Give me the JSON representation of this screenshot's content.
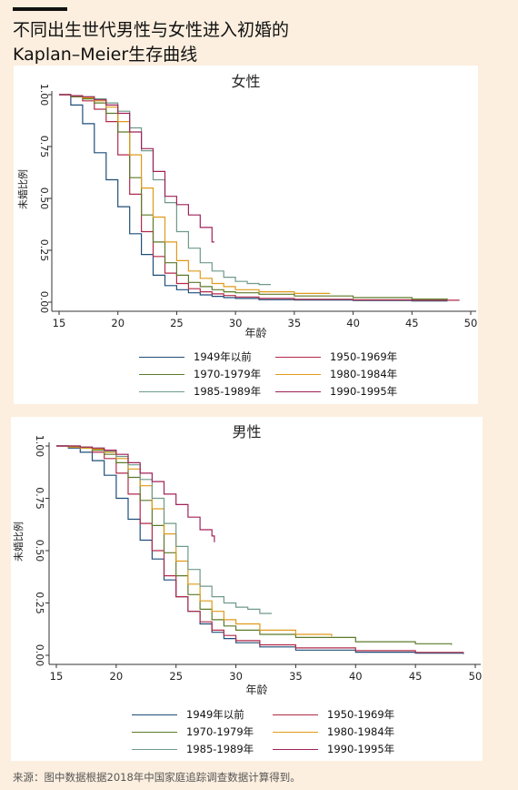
{
  "header": {
    "title_line1": "不同出生世代男性与女性进入初婚的",
    "title_line2": "Kaplan–Meier生存曲线"
  },
  "source": "来源：图中数据根据2018年中国家庭追踪调查数据计算得到。",
  "colors": {
    "background": "#fcefdf",
    "panel": "#ffffff",
    "axis": "#333333",
    "1949年以前": "#1f4e7a",
    "1950-1969年": "#b22a4a",
    "1970-1979年": "#5c7a2a",
    "1980-1984年": "#e09a1a",
    "1985-1989年": "#6f9a8a",
    "1990-1995年": "#a0225a"
  },
  "chart_data": [
    {
      "id": "female",
      "type": "line",
      "step": true,
      "title": "女性",
      "xlabel": "年龄",
      "ylabel": "未婚比例",
      "xlim": [
        14.5,
        50
      ],
      "ylim": [
        0,
        1
      ],
      "xticks": [
        15,
        20,
        25,
        30,
        35,
        40,
        45,
        50
      ],
      "yticks": [
        "0.00",
        "0.25",
        "0.50",
        "0.75",
        "1.00"
      ],
      "grid": false,
      "legend": "bottom",
      "series": [
        {
          "name": "1949年以前",
          "points": [
            [
              15,
              1
            ],
            [
              16,
              0.95
            ],
            [
              17,
              0.86
            ],
            [
              18,
              0.72
            ],
            [
              19,
              0.59
            ],
            [
              20,
              0.46
            ],
            [
              21,
              0.33
            ],
            [
              22,
              0.23
            ],
            [
              23,
              0.13
            ],
            [
              24,
              0.08
            ],
            [
              25,
              0.06
            ],
            [
              26,
              0.045
            ],
            [
              27,
              0.035
            ],
            [
              28,
              0.028
            ],
            [
              29,
              0.022
            ],
            [
              30,
              0.018
            ],
            [
              32,
              0.012
            ],
            [
              35,
              0.01
            ],
            [
              40,
              0.008
            ],
            [
              45,
              0.006
            ],
            [
              48,
              0.005
            ]
          ]
        },
        {
          "name": "1950-1969年",
          "points": [
            [
              15,
              1
            ],
            [
              16,
              0.99
            ],
            [
              17,
              0.97
            ],
            [
              18,
              0.93
            ],
            [
              19,
              0.87
            ],
            [
              20,
              0.71
            ],
            [
              21,
              0.52
            ],
            [
              22,
              0.34
            ],
            [
              23,
              0.22
            ],
            [
              24,
              0.14
            ],
            [
              25,
              0.09
            ],
            [
              26,
              0.065
            ],
            [
              27,
              0.05
            ],
            [
              28,
              0.04
            ],
            [
              29,
              0.032
            ],
            [
              30,
              0.025
            ],
            [
              32,
              0.018
            ],
            [
              35,
              0.014
            ],
            [
              40,
              0.011
            ],
            [
              45,
              0.009
            ],
            [
              49,
              0.007
            ]
          ]
        },
        {
          "name": "1970-1979年",
          "points": [
            [
              15,
              1
            ],
            [
              16,
              0.99
            ],
            [
              17,
              0.98
            ],
            [
              18,
              0.96
            ],
            [
              19,
              0.91
            ],
            [
              20,
              0.82
            ],
            [
              21,
              0.6
            ],
            [
              22,
              0.42
            ],
            [
              23,
              0.29
            ],
            [
              24,
              0.19
            ],
            [
              25,
              0.13
            ],
            [
              26,
              0.095
            ],
            [
              27,
              0.075
            ],
            [
              28,
              0.06
            ],
            [
              29,
              0.05
            ],
            [
              30,
              0.045
            ],
            [
              32,
              0.038
            ],
            [
              35,
              0.03
            ],
            [
              40,
              0.022
            ],
            [
              45,
              0.015
            ],
            [
              48,
              0.012
            ]
          ]
        },
        {
          "name": "1980-1984年",
          "points": [
            [
              15,
              1
            ],
            [
              16,
              0.995
            ],
            [
              17,
              0.985
            ],
            [
              18,
              0.97
            ],
            [
              19,
              0.94
            ],
            [
              20,
              0.87
            ],
            [
              21,
              0.71
            ],
            [
              22,
              0.55
            ],
            [
              23,
              0.41
            ],
            [
              24,
              0.29
            ],
            [
              25,
              0.2
            ],
            [
              26,
              0.15
            ],
            [
              27,
              0.115
            ],
            [
              28,
              0.09
            ],
            [
              29,
              0.075
            ],
            [
              30,
              0.06
            ],
            [
              32,
              0.05
            ],
            [
              35,
              0.042
            ],
            [
              38,
              0.04
            ]
          ]
        },
        {
          "name": "1985-1989年",
          "points": [
            [
              15,
              1
            ],
            [
              16,
              0.995
            ],
            [
              17,
              0.99
            ],
            [
              18,
              0.98
            ],
            [
              19,
              0.96
            ],
            [
              20,
              0.92
            ],
            [
              21,
              0.84
            ],
            [
              22,
              0.73
            ],
            [
              23,
              0.59
            ],
            [
              24,
              0.48
            ],
            [
              25,
              0.34
            ],
            [
              26,
              0.26
            ],
            [
              27,
              0.19
            ],
            [
              28,
              0.15
            ],
            [
              29,
              0.12
            ],
            [
              30,
              0.1
            ],
            [
              31,
              0.09
            ],
            [
              32,
              0.085
            ],
            [
              33,
              0.085
            ]
          ]
        },
        {
          "name": "1990-1995年",
          "points": [
            [
              15,
              1
            ],
            [
              16,
              0.995
            ],
            [
              17,
              0.99
            ],
            [
              18,
              0.975
            ],
            [
              19,
              0.95
            ],
            [
              20,
              0.91
            ],
            [
              21,
              0.82
            ],
            [
              22,
              0.74
            ],
            [
              23,
              0.63
            ],
            [
              24,
              0.51
            ],
            [
              25,
              0.47
            ],
            [
              26,
              0.42
            ],
            [
              27,
              0.36
            ],
            [
              28,
              0.29
            ],
            [
              28.2,
              0.29
            ]
          ]
        }
      ]
    },
    {
      "id": "male",
      "type": "line",
      "step": true,
      "title": "男性",
      "xlabel": "年龄",
      "ylabel": "未婚比例",
      "xlim": [
        14.5,
        50
      ],
      "ylim": [
        0,
        1
      ],
      "xticks": [
        15,
        20,
        25,
        30,
        35,
        40,
        45,
        50
      ],
      "yticks": [
        "0.00",
        "0.25",
        "0.50",
        "0.75",
        "1.00"
      ],
      "grid": false,
      "legend": "bottom",
      "series": [
        {
          "name": "1949年以前",
          "points": [
            [
              15,
              1
            ],
            [
              16,
              0.99
            ],
            [
              17,
              0.97
            ],
            [
              18,
              0.93
            ],
            [
              19,
              0.86
            ],
            [
              20,
              0.75
            ],
            [
              21,
              0.65
            ],
            [
              22,
              0.55
            ],
            [
              23,
              0.46
            ],
            [
              24,
              0.36
            ],
            [
              25,
              0.28
            ],
            [
              26,
              0.21
            ],
            [
              27,
              0.15
            ],
            [
              28,
              0.11
            ],
            [
              29,
              0.08
            ],
            [
              30,
              0.06
            ],
            [
              32,
              0.04
            ],
            [
              35,
              0.025
            ],
            [
              40,
              0.015
            ],
            [
              45,
              0.01
            ],
            [
              49,
              0.006
            ]
          ]
        },
        {
          "name": "1950-1969年",
          "points": [
            [
              15,
              1
            ],
            [
              16,
              0.995
            ],
            [
              17,
              0.99
            ],
            [
              18,
              0.97
            ],
            [
              19,
              0.94
            ],
            [
              20,
              0.87
            ],
            [
              21,
              0.77
            ],
            [
              22,
              0.63
            ],
            [
              23,
              0.5
            ],
            [
              24,
              0.38
            ],
            [
              25,
              0.28
            ],
            [
              26,
              0.21
            ],
            [
              27,
              0.16
            ],
            [
              28,
              0.12
            ],
            [
              29,
              0.095
            ],
            [
              30,
              0.07
            ],
            [
              32,
              0.05
            ],
            [
              35,
              0.035
            ],
            [
              40,
              0.022
            ],
            [
              45,
              0.014
            ],
            [
              49,
              0.01
            ]
          ]
        },
        {
          "name": "1970-1979年",
          "points": [
            [
              15,
              1
            ],
            [
              16,
              0.995
            ],
            [
              17,
              0.99
            ],
            [
              18,
              0.98
            ],
            [
              19,
              0.96
            ],
            [
              20,
              0.92
            ],
            [
              21,
              0.85
            ],
            [
              22,
              0.74
            ],
            [
              23,
              0.62
            ],
            [
              24,
              0.49
            ],
            [
              25,
              0.38
            ],
            [
              26,
              0.29
            ],
            [
              27,
              0.22
            ],
            [
              28,
              0.17
            ],
            [
              29,
              0.14
            ],
            [
              30,
              0.12
            ],
            [
              32,
              0.1
            ],
            [
              35,
              0.085
            ],
            [
              40,
              0.065
            ],
            [
              45,
              0.055
            ],
            [
              48,
              0.05
            ]
          ]
        },
        {
          "name": "1980-1984年",
          "points": [
            [
              15,
              1
            ],
            [
              16,
              0.995
            ],
            [
              17,
              0.99
            ],
            [
              18,
              0.985
            ],
            [
              19,
              0.97
            ],
            [
              20,
              0.94
            ],
            [
              21,
              0.89
            ],
            [
              22,
              0.81
            ],
            [
              23,
              0.7
            ],
            [
              24,
              0.58
            ],
            [
              25,
              0.45
            ],
            [
              26,
              0.34
            ],
            [
              27,
              0.26
            ],
            [
              28,
              0.21
            ],
            [
              29,
              0.17
            ],
            [
              30,
              0.15
            ],
            [
              32,
              0.12
            ],
            [
              35,
              0.1
            ],
            [
              38,
              0.09
            ]
          ]
        },
        {
          "name": "1985-1989年",
          "points": [
            [
              15,
              1
            ],
            [
              16,
              1
            ],
            [
              17,
              0.995
            ],
            [
              18,
              0.99
            ],
            [
              19,
              0.975
            ],
            [
              20,
              0.95
            ],
            [
              21,
              0.91
            ],
            [
              22,
              0.84
            ],
            [
              23,
              0.75
            ],
            [
              24,
              0.63
            ],
            [
              25,
              0.52
            ],
            [
              26,
              0.41
            ],
            [
              27,
              0.33
            ],
            [
              28,
              0.28
            ],
            [
              29,
              0.25
            ],
            [
              30,
              0.23
            ],
            [
              31,
              0.22
            ],
            [
              32,
              0.2
            ],
            [
              33,
              0.2
            ]
          ]
        },
        {
          "name": "1990-1995年",
          "points": [
            [
              15,
              1
            ],
            [
              16,
              1
            ],
            [
              17,
              0.995
            ],
            [
              18,
              0.99
            ],
            [
              19,
              0.98
            ],
            [
              20,
              0.96
            ],
            [
              21,
              0.92
            ],
            [
              22,
              0.87
            ],
            [
              23,
              0.83
            ],
            [
              24,
              0.77
            ],
            [
              25,
              0.72
            ],
            [
              26,
              0.66
            ],
            [
              27,
              0.6
            ],
            [
              28,
              0.57
            ],
            [
              28.2,
              0.54
            ]
          ]
        }
      ]
    }
  ]
}
